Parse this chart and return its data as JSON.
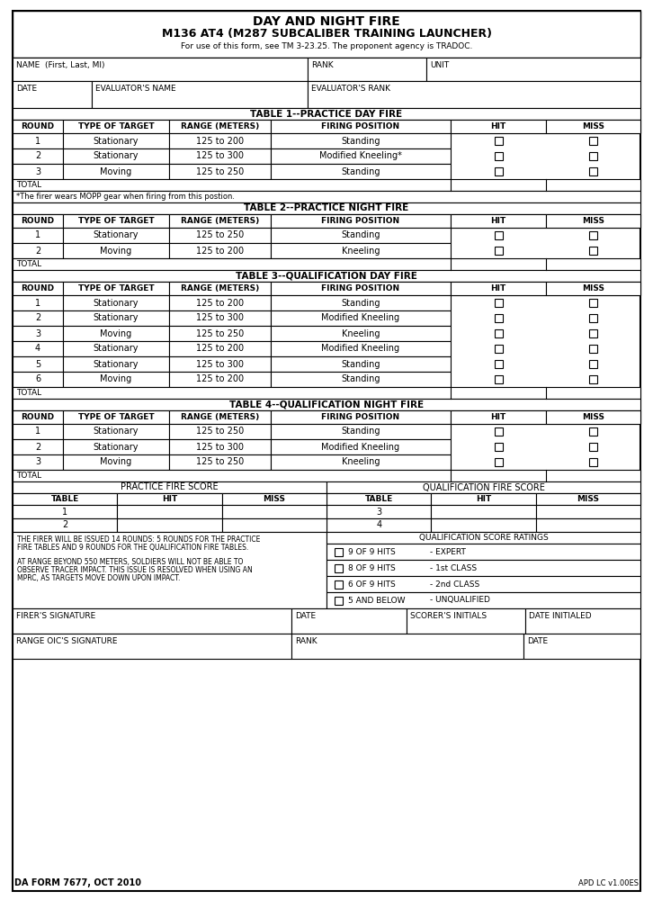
{
  "title_line1": "DAY AND NIGHT FIRE",
  "title_line2": "M136 AT4 (M287 SUBCALIBER TRAINING LAUNCHER)",
  "title_line3": "For use of this form, see TM 3-23.25. The proponent agency is TRADOC.",
  "table1_title": "TABLE 1--PRACTICE DAY FIRE",
  "table2_title": "TABLE 2--PRACTICE NIGHT FIRE",
  "table3_title": "TABLE 3--QUALIFICATION DAY FIRE",
  "table4_title": "TABLE 4--QUALIFICATION NIGHT FIRE",
  "col_headers": [
    "ROUND",
    "TYPE OF TARGET",
    "RANGE (METERS)",
    "FIRING POSITION",
    "HIT",
    "MISS"
  ],
  "table1_rows": [
    [
      "1",
      "Stationary",
      "125 to 200",
      "Standing"
    ],
    [
      "2",
      "Stationary",
      "125 to 300",
      "Modified Kneeling*"
    ],
    [
      "3",
      "Moving",
      "125 to 250",
      "Standing"
    ]
  ],
  "table1_footnote": "*The firer wears MOPP gear when firing from this postion.",
  "table2_rows": [
    [
      "1",
      "Stationary",
      "125 to 250",
      "Standing"
    ],
    [
      "2",
      "Moving",
      "125 to 200",
      "Kneeling"
    ]
  ],
  "table3_rows": [
    [
      "1",
      "Stationary",
      "125 to 200",
      "Standing"
    ],
    [
      "2",
      "Stationary",
      "125 to 300",
      "Modified Kneeling"
    ],
    [
      "3",
      "Moving",
      "125 to 250",
      "Kneeling"
    ],
    [
      "4",
      "Stationary",
      "125 to 200",
      "Modified Kneeling"
    ],
    [
      "5",
      "Stationary",
      "125 to 300",
      "Standing"
    ],
    [
      "6",
      "Moving",
      "125 to 200",
      "Standing"
    ]
  ],
  "table4_rows": [
    [
      "1",
      "Stationary",
      "125 to 250",
      "Standing"
    ],
    [
      "2",
      "Stationary",
      "125 to 300",
      "Modified Kneeling"
    ],
    [
      "3",
      "Moving",
      "125 to 250",
      "Kneeling"
    ]
  ],
  "score_note1a": "THE FIRER WILL BE ISSUED 14 ROUNDS: 5 ROUNDS FOR THE PRACTICE",
  "score_note1b": "FIRE TABLES AND 9 ROUNDS FOR THE QUALIFICATION FIRE TABLES.",
  "score_note2a": "AT RANGE BEYOND 550 METERS, SOLDIERS WILL NOT BE ABLE TO",
  "score_note2b": "OBSERVE TRACER IMPACT. THIS ISSUE IS RESOLVED WHEN USING AN",
  "score_note2c": "MPRC, AS TARGETS MOVE DOWN UPON IMPACT.",
  "ratings": [
    [
      "9 OF 9 HITS",
      "- EXPERT"
    ],
    [
      "8 OF 9 HITS",
      "- 1st CLASS"
    ],
    [
      "6 OF 9 HITS",
      "- 2nd CLASS"
    ],
    [
      "5 AND BELOW",
      "- UNQUALIFIED"
    ]
  ],
  "practice_score_label": "PRACTICE FIRE SCORE",
  "qual_score_label": "QUALIFICATION FIRE SCORE",
  "qual_score_ratings_label": "QUALIFICATION SCORE RATINGS",
  "form_number": "DA FORM 7677, OCT 2010",
  "apd": "APD LC v1.00ES",
  "bg_color": "#ffffff",
  "line_color": "#000000"
}
